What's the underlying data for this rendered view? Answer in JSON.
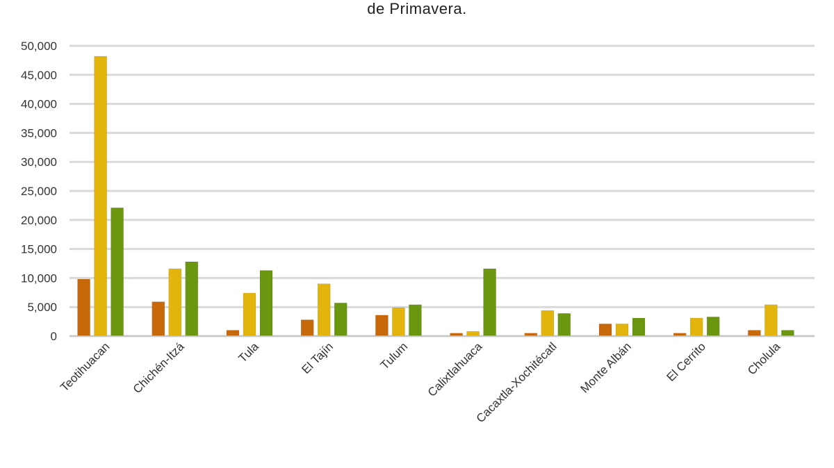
{
  "title": "de Primavera.",
  "colors": {
    "series1": "#c7680a",
    "series2": "#e2b40c",
    "series3": "#6b9610",
    "grid": "#d9d9d9"
  },
  "chart_data": {
    "type": "bar",
    "title": "de Primavera.",
    "xlabel": "",
    "ylabel": "",
    "ylim": [
      0,
      50000
    ],
    "yticks": [
      0,
      5000,
      10000,
      15000,
      20000,
      25000,
      30000,
      35000,
      40000,
      45000,
      50000
    ],
    "ytick_labels": [
      "0",
      "5,000",
      "10,000",
      "15,000",
      "20,000",
      "25,000",
      "30,000",
      "35,000",
      "40,000",
      "45,000",
      "50,000"
    ],
    "grid": true,
    "legend": "none",
    "categories": [
      "Teotihuacan",
      "Chichén-Itzá",
      "Tula",
      "El Tajín",
      "Tulum",
      "Calixtlahuaca",
      "Cacaxtla-Xochitécatl",
      "Monte Albán",
      "El Cerrito",
      "Cholula"
    ],
    "series": [
      {
        "values": [
          9800,
          5900,
          1000,
          2800,
          3600,
          500,
          500,
          2100,
          500,
          1000
        ]
      },
      {
        "values": [
          48200,
          11600,
          7400,
          9000,
          4900,
          800,
          4400,
          2100,
          3100,
          5400
        ]
      },
      {
        "values": [
          22100,
          12800,
          11300,
          5700,
          5400,
          11600,
          3900,
          3100,
          3300,
          1000
        ]
      }
    ]
  }
}
